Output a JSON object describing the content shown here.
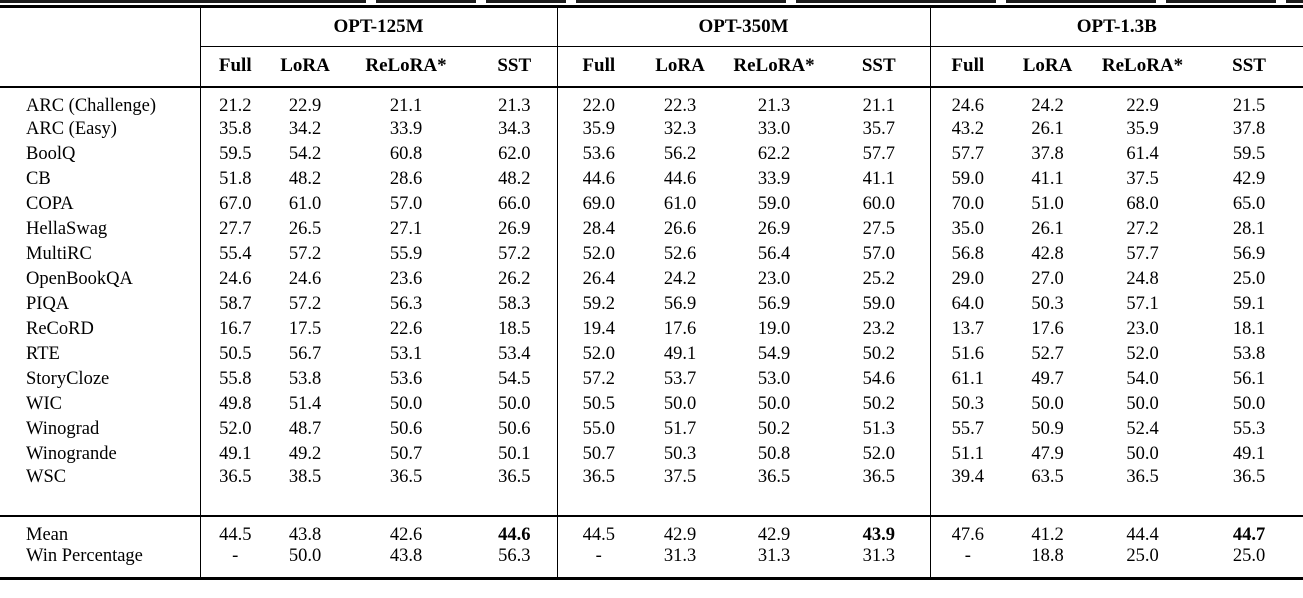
{
  "table": {
    "groups": [
      {
        "label": "OPT-125M"
      },
      {
        "label": "OPT-350M"
      },
      {
        "label": "OPT-1.3B"
      }
    ],
    "sub_columns": [
      "Full",
      "LoRA",
      "ReLoRA*",
      "SST"
    ],
    "rows": [
      {
        "task": "ARC (Challenge)",
        "values": [
          "21.2",
          "22.9",
          "21.1",
          "21.3",
          "22.0",
          "22.3",
          "21.3",
          "21.1",
          "24.6",
          "24.2",
          "22.9",
          "21.5"
        ]
      },
      {
        "task": "ARC (Easy)",
        "values": [
          "35.8",
          "34.2",
          "33.9",
          "34.3",
          "35.9",
          "32.3",
          "33.0",
          "35.7",
          "43.2",
          "26.1",
          "35.9",
          "37.8"
        ]
      },
      {
        "task": "BoolQ",
        "values": [
          "59.5",
          "54.2",
          "60.8",
          "62.0",
          "53.6",
          "56.2",
          "62.2",
          "57.7",
          "57.7",
          "37.8",
          "61.4",
          "59.5"
        ]
      },
      {
        "task": "CB",
        "values": [
          "51.8",
          "48.2",
          "28.6",
          "48.2",
          "44.6",
          "44.6",
          "33.9",
          "41.1",
          "59.0",
          "41.1",
          "37.5",
          "42.9"
        ]
      },
      {
        "task": "COPA",
        "values": [
          "67.0",
          "61.0",
          "57.0",
          "66.0",
          "69.0",
          "61.0",
          "59.0",
          "60.0",
          "70.0",
          "51.0",
          "68.0",
          "65.0"
        ]
      },
      {
        "task": "HellaSwag",
        "values": [
          "27.7",
          "26.5",
          "27.1",
          "26.9",
          "28.4",
          "26.6",
          "26.9",
          "27.5",
          "35.0",
          "26.1",
          "27.2",
          "28.1"
        ]
      },
      {
        "task": "MultiRC",
        "values": [
          "55.4",
          "57.2",
          "55.9",
          "57.2",
          "52.0",
          "52.6",
          "56.4",
          "57.0",
          "56.8",
          "42.8",
          "57.7",
          "56.9"
        ]
      },
      {
        "task": "OpenBookQA",
        "values": [
          "24.6",
          "24.6",
          "23.6",
          "26.2",
          "26.4",
          "24.2",
          "23.0",
          "25.2",
          "29.0",
          "27.0",
          "24.8",
          "25.0"
        ]
      },
      {
        "task": "PIQA",
        "values": [
          "58.7",
          "57.2",
          "56.3",
          "58.3",
          "59.2",
          "56.9",
          "56.9",
          "59.0",
          "64.0",
          "50.3",
          "57.1",
          "59.1"
        ]
      },
      {
        "task": "ReCoRD",
        "values": [
          "16.7",
          "17.5",
          "22.6",
          "18.5",
          "19.4",
          "17.6",
          "19.0",
          "23.2",
          "13.7",
          "17.6",
          "23.0",
          "18.1"
        ]
      },
      {
        "task": "RTE",
        "values": [
          "50.5",
          "56.7",
          "53.1",
          "53.4",
          "52.0",
          "49.1",
          "54.9",
          "50.2",
          "51.6",
          "52.7",
          "52.0",
          "53.8"
        ]
      },
      {
        "task": "StoryCloze",
        "values": [
          "55.8",
          "53.8",
          "53.6",
          "54.5",
          "57.2",
          "53.7",
          "53.0",
          "54.6",
          "61.1",
          "49.7",
          "54.0",
          "56.1"
        ]
      },
      {
        "task": "WIC",
        "values": [
          "49.8",
          "51.4",
          "50.0",
          "50.0",
          "50.5",
          "50.0",
          "50.0",
          "50.2",
          "50.3",
          "50.0",
          "50.0",
          "50.0"
        ]
      },
      {
        "task": "Winograd",
        "values": [
          "52.0",
          "48.7",
          "50.6",
          "50.6",
          "55.0",
          "51.7",
          "50.2",
          "51.3",
          "55.7",
          "50.9",
          "52.4",
          "55.3"
        ]
      },
      {
        "task": "Winogrande",
        "values": [
          "49.1",
          "49.2",
          "50.7",
          "50.1",
          "50.7",
          "50.3",
          "50.8",
          "52.0",
          "51.1",
          "47.9",
          "50.0",
          "49.1"
        ]
      },
      {
        "task": "WSC",
        "values": [
          "36.5",
          "38.5",
          "36.5",
          "36.5",
          "36.5",
          "37.5",
          "36.5",
          "36.5",
          "39.4",
          "63.5",
          "36.5",
          "36.5"
        ]
      }
    ],
    "summary_rows": [
      {
        "task": "Mean",
        "values": [
          "44.5",
          "43.8",
          "42.6",
          "44.6",
          "44.5",
          "42.9",
          "42.9",
          "43.9",
          "47.6",
          "41.2",
          "44.4",
          "44.7"
        ],
        "bold": [
          3,
          7,
          11
        ]
      },
      {
        "task": "Win Percentage",
        "values": [
          "-",
          "50.0",
          "43.8",
          "56.3",
          "-",
          "31.3",
          "31.3",
          "31.3",
          "-",
          "18.8",
          "25.0",
          "25.0"
        ],
        "bold": []
      }
    ],
    "text_color": "#000000",
    "background_color": "#ffffff"
  }
}
